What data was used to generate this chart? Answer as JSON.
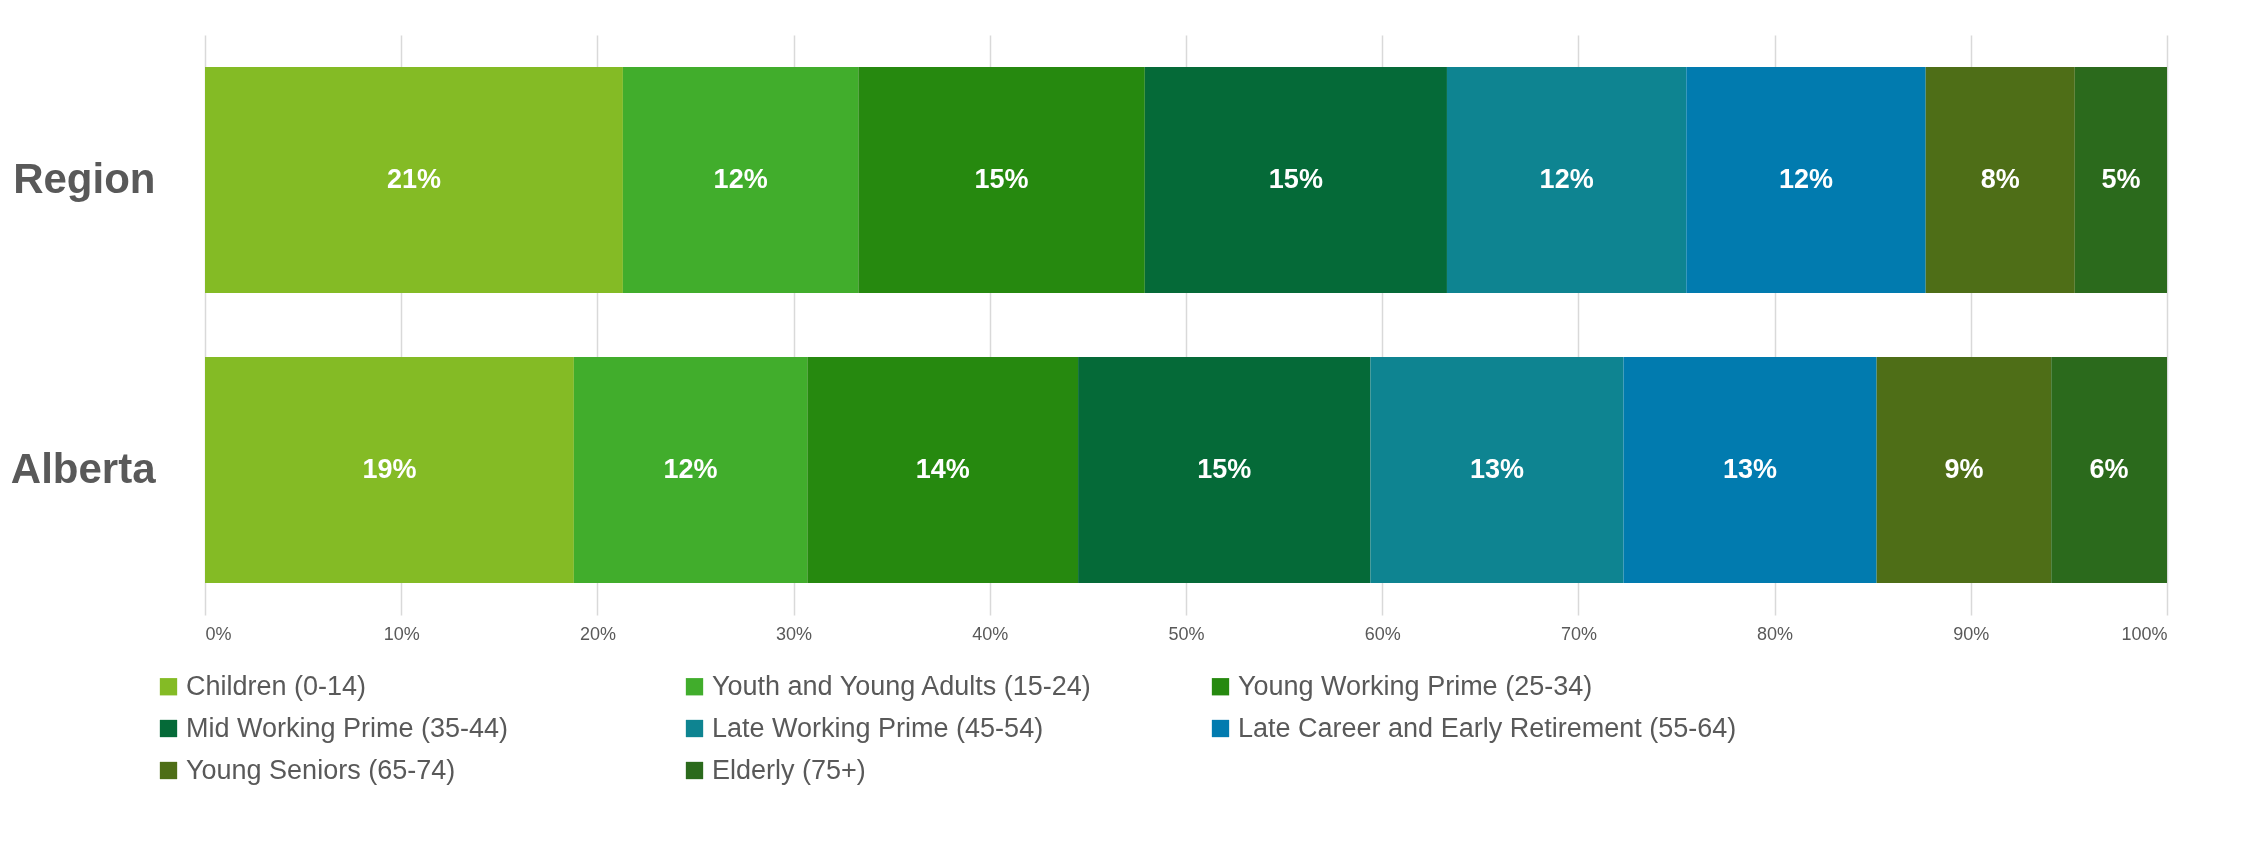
{
  "chart_data": {
    "type": "bar",
    "orientation": "horizontal",
    "stacked": true,
    "categories": [
      "Region",
      "Alberta"
    ],
    "series": [
      {
        "name": "Children (0-14)",
        "color": "#84bb25",
        "values": [
          21.3,
          18.8
        ],
        "value_labels": [
          "21%",
          "19%"
        ]
      },
      {
        "name": "Youth and Young Adults (15-24)",
        "color": "#41ad2c",
        "values": [
          12.0,
          11.9
        ],
        "value_labels": [
          "12%",
          "12%"
        ]
      },
      {
        "name": "Young Working Prime (25-34)",
        "color": "#26890f",
        "values": [
          14.6,
          13.8
        ],
        "value_labels": [
          "15%",
          "14%"
        ]
      },
      {
        "name": "Mid Working Prime (35-44)",
        "color": "#056a38",
        "values": [
          15.4,
          14.9
        ],
        "value_labels": [
          "15%",
          "15%"
        ]
      },
      {
        "name": "Late Working Prime (45-54)",
        "color": "#0e8491",
        "values": [
          12.2,
          12.9
        ],
        "value_labels": [
          "12%",
          "13%"
        ]
      },
      {
        "name": "Late Career and Early Retirement (55-64)",
        "color": "#017baf",
        "values": [
          12.2,
          12.9
        ],
        "value_labels": [
          "12%",
          "13%"
        ]
      },
      {
        "name": "Young Seniors (65-74)",
        "color": "#4e6e17",
        "values": [
          7.6,
          8.9
        ],
        "value_labels": [
          "8%",
          "9%"
        ]
      },
      {
        "name": "Elderly (75+)",
        "color": "#2b6a1c",
        "values": [
          4.7,
          5.9
        ],
        "value_labels": [
          "5%",
          "6%"
        ]
      }
    ],
    "xlim": [
      0,
      100
    ],
    "xticks": [
      {
        "value": 0,
        "label": "0%"
      },
      {
        "value": 10,
        "label": "10%"
      },
      {
        "value": 20,
        "label": "20%"
      },
      {
        "value": 30,
        "label": "30%"
      },
      {
        "value": 40,
        "label": "40%"
      },
      {
        "value": 50,
        "label": "50%"
      },
      {
        "value": 60,
        "label": "60%"
      },
      {
        "value": 70,
        "label": "70%"
      },
      {
        "value": 80,
        "label": "80%"
      },
      {
        "value": 90,
        "label": "90%"
      },
      {
        "value": 100,
        "label": "100%"
      }
    ],
    "grid": "x",
    "legend": "bottom"
  }
}
